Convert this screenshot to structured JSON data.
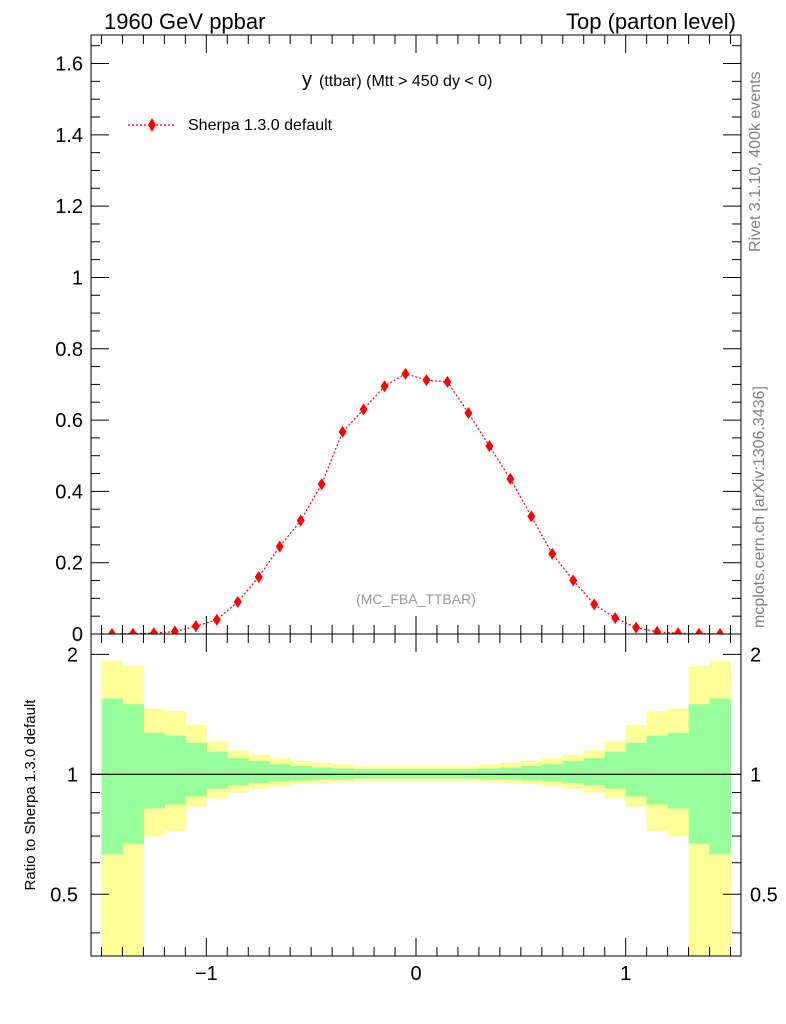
{
  "header": {
    "left": "1960 GeV ppbar",
    "right": "Top (parton level)"
  },
  "side_text": {
    "rivet": "Rivet 3.1.10,  400k events",
    "mcplots": "mcplots.cern.ch [arXiv:1306.3436]"
  },
  "colors": {
    "series": "#ff0000",
    "band_inner": "#99ff99",
    "band_outer": "#ffff99",
    "axis": "#000000",
    "watermark": "#999999",
    "side_text": "#808080"
  },
  "chart_data": [
    {
      "type": "line",
      "title_main": "y",
      "title_rest": "(ttbar) (Mtt > 450 dy < 0)",
      "watermark": "(MC_FBA_TTBAR)",
      "xlim": [
        -1.55,
        1.55
      ],
      "ylim": [
        0,
        1.68
      ],
      "yticks": [
        0,
        0.2,
        0.4,
        0.6,
        0.8,
        1,
        1.2,
        1.4,
        1.6
      ],
      "ytick_labels": [
        "0",
        "0.2",
        "0.4",
        "0.6",
        "0.8",
        "1",
        "1.2",
        "1.4",
        "1.6"
      ],
      "legend": "Sherpa 1.3.0 default",
      "legend_position": "top-left",
      "series": [
        {
          "name": "Sherpa 1.3.0 default",
          "x": [
            -1.45,
            -1.35,
            -1.25,
            -1.15,
            -1.05,
            -0.95,
            -0.85,
            -0.75,
            -0.65,
            -0.55,
            -0.45,
            -0.35,
            -0.25,
            -0.15,
            -0.05,
            0.05,
            0.15,
            0.25,
            0.35,
            0.45,
            0.55,
            0.65,
            0.75,
            0.85,
            0.95,
            1.05,
            1.15,
            1.25,
            1.35,
            1.45
          ],
          "values": [
            0.0,
            0.001,
            0.002,
            0.007,
            0.022,
            0.04,
            0.09,
            0.16,
            0.245,
            0.318,
            0.42,
            0.567,
            0.63,
            0.695,
            0.73,
            0.712,
            0.707,
            0.62,
            0.527,
            0.435,
            0.33,
            0.225,
            0.15,
            0.083,
            0.045,
            0.018,
            0.006,
            0.002,
            0.001,
            0.0
          ]
        }
      ]
    },
    {
      "type": "area",
      "ylabel": "Ratio to Sherpa 1.3.0 default",
      "xlim": [
        -1.55,
        1.55
      ],
      "ylim": [
        0.35,
        2.25
      ],
      "xticks": [
        -1,
        0,
        1
      ],
      "xtick_labels": [
        "−1",
        "0",
        "1"
      ],
      "yticks": [
        0.5,
        1,
        2
      ],
      "ytick_labels": [
        "0.5",
        "1",
        "2"
      ],
      "bin_edges": [
        -1.5,
        -1.4,
        -1.3,
        -1.2,
        -1.1,
        -1.0,
        -0.9,
        -0.8,
        -0.7,
        -0.6,
        -0.5,
        -0.4,
        -0.3,
        -0.2,
        -0.1,
        0.0,
        0.1,
        0.2,
        0.3,
        0.4,
        0.5,
        0.6,
        0.7,
        0.8,
        0.9,
        1.0,
        1.1,
        1.2,
        1.3,
        1.4,
        1.5
      ],
      "inner_band": {
        "upper": [
          1.55,
          1.5,
          1.27,
          1.25,
          1.2,
          1.14,
          1.1,
          1.08,
          1.06,
          1.05,
          1.04,
          1.035,
          1.03,
          1.03,
          1.03,
          1.03,
          1.03,
          1.03,
          1.035,
          1.04,
          1.05,
          1.06,
          1.08,
          1.1,
          1.14,
          1.2,
          1.25,
          1.27,
          1.5,
          1.55
        ],
        "lower": [
          0.63,
          0.67,
          0.82,
          0.84,
          0.88,
          0.92,
          0.94,
          0.95,
          0.96,
          0.965,
          0.97,
          0.97,
          0.975,
          0.975,
          0.975,
          0.975,
          0.975,
          0.975,
          0.97,
          0.97,
          0.965,
          0.96,
          0.95,
          0.94,
          0.92,
          0.88,
          0.84,
          0.82,
          0.67,
          0.63
        ]
      },
      "outer_band": {
        "upper": [
          1.93,
          1.87,
          1.46,
          1.44,
          1.33,
          1.21,
          1.15,
          1.12,
          1.1,
          1.08,
          1.07,
          1.06,
          1.05,
          1.05,
          1.05,
          1.05,
          1.05,
          1.05,
          1.06,
          1.07,
          1.08,
          1.1,
          1.12,
          1.15,
          1.21,
          1.33,
          1.44,
          1.46,
          1.87,
          1.93
        ],
        "lower": [
          0.3,
          0.3,
          0.7,
          0.72,
          0.83,
          0.87,
          0.9,
          0.92,
          0.935,
          0.945,
          0.95,
          0.955,
          0.96,
          0.96,
          0.96,
          0.96,
          0.96,
          0.96,
          0.955,
          0.95,
          0.945,
          0.935,
          0.92,
          0.9,
          0.87,
          0.83,
          0.72,
          0.7,
          0.3,
          0.3
        ]
      },
      "reference_line": 1
    }
  ]
}
